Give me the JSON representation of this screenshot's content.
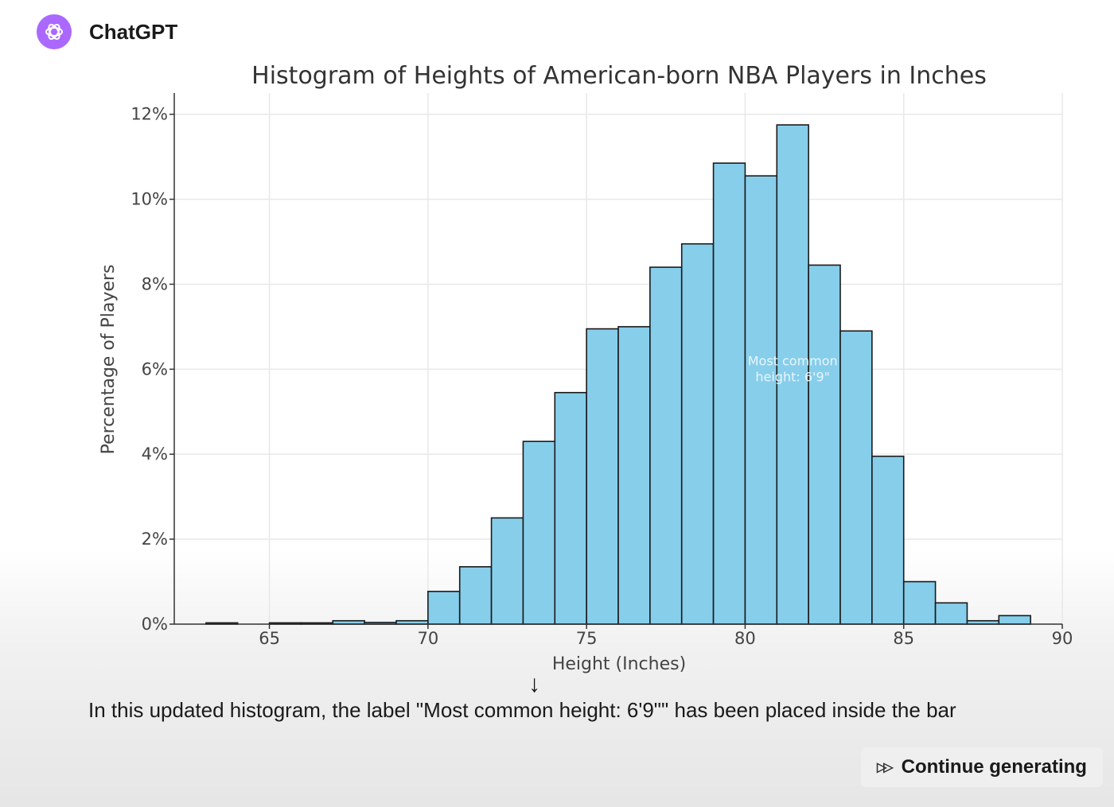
{
  "app": {
    "name": "ChatGPT",
    "avatar_color": "#ab68ff"
  },
  "chart_data": {
    "type": "bar",
    "title": "Histogram of Heights of American-born NBA Players in Inches",
    "xlabel": "Height (Inches)",
    "ylabel": "Percentage of Players",
    "xlim": [
      62,
      90
    ],
    "ylim": [
      0,
      12.5
    ],
    "xticks": [
      65,
      70,
      75,
      80,
      85,
      90
    ],
    "yticks": [
      0,
      2,
      4,
      6,
      8,
      10,
      12
    ],
    "ytick_labels": [
      "0%",
      "2%",
      "4%",
      "6%",
      "8%",
      "10%",
      "12%"
    ],
    "grid": true,
    "bar_color": "#87ceeb",
    "bins": [
      {
        "x0": 63,
        "x1": 64,
        "value": 0.03
      },
      {
        "x0": 64,
        "x1": 65,
        "value": 0.0
      },
      {
        "x0": 65,
        "x1": 66,
        "value": 0.03
      },
      {
        "x0": 66,
        "x1": 67,
        "value": 0.03
      },
      {
        "x0": 67,
        "x1": 68,
        "value": 0.08
      },
      {
        "x0": 68,
        "x1": 69,
        "value": 0.04
      },
      {
        "x0": 69,
        "x1": 70,
        "value": 0.08
      },
      {
        "x0": 70,
        "x1": 71,
        "value": 0.77
      },
      {
        "x0": 71,
        "x1": 72,
        "value": 1.35
      },
      {
        "x0": 72,
        "x1": 73,
        "value": 2.5
      },
      {
        "x0": 73,
        "x1": 74,
        "value": 4.3
      },
      {
        "x0": 74,
        "x1": 75,
        "value": 5.45
      },
      {
        "x0": 75,
        "x1": 76,
        "value": 6.95
      },
      {
        "x0": 76,
        "x1": 77,
        "value": 7.0
      },
      {
        "x0": 77,
        "x1": 78,
        "value": 8.4
      },
      {
        "x0": 78,
        "x1": 79,
        "value": 8.95
      },
      {
        "x0": 79,
        "x1": 80,
        "value": 10.85
      },
      {
        "x0": 80,
        "x1": 81,
        "value": 10.55
      },
      {
        "x0": 81,
        "x1": 82,
        "value": 11.75
      },
      {
        "x0": 82,
        "x1": 83,
        "value": 8.45
      },
      {
        "x0": 83,
        "x1": 84,
        "value": 6.9
      },
      {
        "x0": 84,
        "x1": 85,
        "value": 3.95
      },
      {
        "x0": 85,
        "x1": 86,
        "value": 1.0
      },
      {
        "x0": 86,
        "x1": 87,
        "value": 0.5
      },
      {
        "x0": 87,
        "x1": 88,
        "value": 0.08
      },
      {
        "x0": 88,
        "x1": 89,
        "value": 0.2
      }
    ],
    "annotation": {
      "lines": [
        "Most common",
        "height: 6'9\""
      ],
      "x": 81.5,
      "y": 5.9
    }
  },
  "message": {
    "arrow": "↓",
    "text": "In this updated histogram, the label \"Most common height: 6'9\"\" has been placed inside the bar"
  },
  "continue_button": {
    "label": "Continue generating",
    "icon": "fast-forward-icon"
  }
}
